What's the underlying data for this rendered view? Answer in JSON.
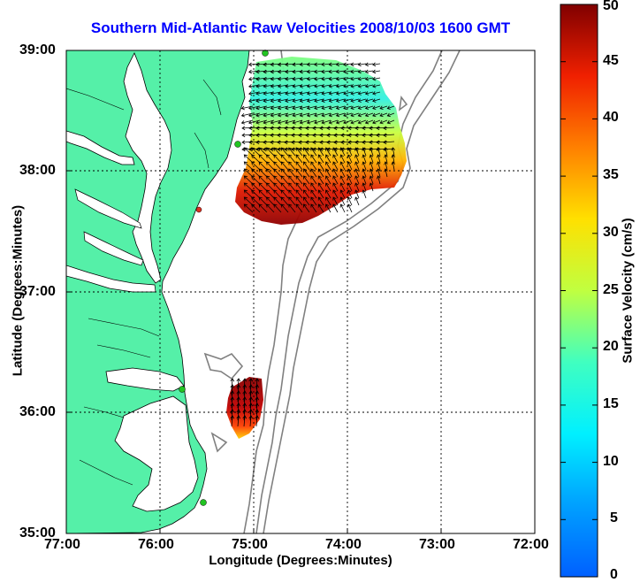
{
  "title": "Southern Mid-Atlantic Raw Velocities 2008/10/03 1600 GMT",
  "xlabel": "Longitude (Degrees:Minutes)",
  "ylabel": "Latitude (Degrees:Minutes)",
  "colorbar_label": "Surface Velocity (cm/s)",
  "x_ticks": [
    "77:00",
    "76:00",
    "75:00",
    "74:00",
    "73:00",
    "72:00"
  ],
  "y_ticks": [
    "39:00",
    "38:00",
    "37:00",
    "36:00",
    "35:00"
  ],
  "colorbar_ticks": [
    "50",
    "45",
    "40",
    "35",
    "30",
    "25",
    "20",
    "15",
    "10",
    "5",
    "0"
  ],
  "colors": {
    "land": "#55f0a8",
    "title": "#0000ff",
    "grid": "#000000",
    "bathymetry": "#808080",
    "site_marker": "#22c422",
    "site_marker_inactive": "#e03020"
  },
  "map": {
    "lon_range": [
      -77,
      -72
    ],
    "lat_range": [
      35,
      39
    ],
    "colorbar_range": [
      0,
      50
    ],
    "colormap": "jet",
    "grid": true
  }
}
